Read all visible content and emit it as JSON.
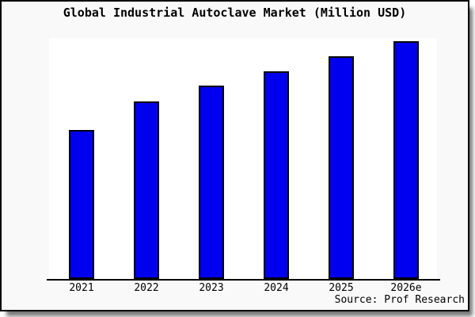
{
  "frame": {
    "background": "#f9f9f9",
    "border_color": "#000000",
    "shadow_color": "#777777"
  },
  "chart_data": {
    "type": "bar",
    "title": "Global Industrial Autoclave Market (Million USD)",
    "categories": [
      "2021",
      "2022",
      "2023",
      "2024",
      "2025",
      "2026e"
    ],
    "values": [
      190,
      226,
      246,
      264,
      283,
      302
    ],
    "values_unit": "relative bar height in px (no y-axis scale or value labels shown in chart)",
    "values_relative_pct_of_max": [
      62.9,
      74.8,
      81.5,
      87.4,
      93.7,
      100
    ],
    "xlabel": "",
    "ylabel": "",
    "ylim": [
      0,
      306
    ],
    "grid": false,
    "legend": "none",
    "bar_color": "#0000ee",
    "bar_border_color": "#000000",
    "plot_background": "#ffffff",
    "axis_color": "#000000"
  },
  "source": {
    "label": "Source: Prof Research"
  }
}
